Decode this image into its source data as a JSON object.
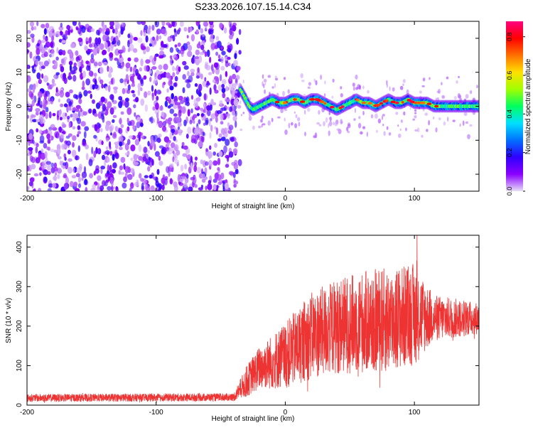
{
  "title": "S233.2026.107.15.14.C34",
  "chart_data": [
    {
      "type": "heatmap",
      "name": "spectrogram",
      "xlabel": "Height of straight line (km)",
      "ylabel": "Frequency (Hz)",
      "xlim": [
        -200,
        150
      ],
      "ylim": [
        -25,
        25
      ],
      "xticks": [
        -200,
        -100,
        0,
        100
      ],
      "yticks": [
        -20,
        -10,
        0,
        10,
        20
      ],
      "noise_region_x": [
        -200,
        -35
      ],
      "signal_trace": [
        {
          "x": -35,
          "y": 5
        },
        {
          "x": -32,
          "y": 3
        },
        {
          "x": -28,
          "y": 0
        },
        {
          "x": -25,
          "y": -1
        },
        {
          "x": -20,
          "y": 0
        },
        {
          "x": -15,
          "y": 1
        },
        {
          "x": -10,
          "y": 2
        },
        {
          "x": -5,
          "y": 1
        },
        {
          "x": 0,
          "y": 1
        },
        {
          "x": 5,
          "y": 2
        },
        {
          "x": 10,
          "y": 2
        },
        {
          "x": 15,
          "y": 1
        },
        {
          "x": 20,
          "y": 2
        },
        {
          "x": 25,
          "y": 2
        },
        {
          "x": 30,
          "y": 1
        },
        {
          "x": 35,
          "y": 0
        },
        {
          "x": 40,
          "y": -1
        },
        {
          "x": 45,
          "y": 0
        },
        {
          "x": 50,
          "y": 1
        },
        {
          "x": 55,
          "y": 2
        },
        {
          "x": 60,
          "y": 1
        },
        {
          "x": 65,
          "y": 1
        },
        {
          "x": 70,
          "y": 0
        },
        {
          "x": 75,
          "y": 1
        },
        {
          "x": 80,
          "y": 2
        },
        {
          "x": 85,
          "y": 1
        },
        {
          "x": 90,
          "y": 1
        },
        {
          "x": 95,
          "y": 2
        },
        {
          "x": 100,
          "y": 1
        },
        {
          "x": 105,
          "y": 1
        },
        {
          "x": 110,
          "y": 1
        },
        {
          "x": 115,
          "y": 0
        },
        {
          "x": 120,
          "y": 0
        },
        {
          "x": 130,
          "y": 0
        },
        {
          "x": 140,
          "y": 0
        },
        {
          "x": 150,
          "y": 0
        }
      ],
      "colorbar": {
        "label": "Normalized spectral amplitude",
        "ticks": [
          "0.0",
          "0.2",
          "0.4",
          "0.6",
          "0.8"
        ],
        "range": [
          0,
          0.88
        ],
        "colors": [
          "#e8e0f8",
          "#8a00ff",
          "#3000ff",
          "#0070ff",
          "#00e0ff",
          "#00ff60",
          "#a0ff00",
          "#ffe000",
          "#ff7000",
          "#ff0000",
          "#ff0080"
        ]
      }
    },
    {
      "type": "line",
      "name": "snr",
      "xlabel": "Height of straight line (km)",
      "ylabel": "SNR (10 * v/v)",
      "xlim": [
        -200,
        150
      ],
      "ylim": [
        0,
        430
      ],
      "xticks": [
        -200,
        -100,
        0,
        100
      ],
      "yticks": [
        0,
        100,
        200,
        300,
        400
      ],
      "color": "#ee3333",
      "envelope": [
        {
          "x": -200,
          "mean": 18,
          "amp": 10
        },
        {
          "x": -40,
          "mean": 20,
          "amp": 10
        },
        {
          "x": -30,
          "mean": 60,
          "amp": 40
        },
        {
          "x": -20,
          "mean": 95,
          "amp": 55
        },
        {
          "x": 0,
          "mean": 125,
          "amp": 85
        },
        {
          "x": 20,
          "mean": 175,
          "amp": 110
        },
        {
          "x": 40,
          "mean": 200,
          "amp": 120
        },
        {
          "x": 60,
          "mean": 210,
          "amp": 130
        },
        {
          "x": 80,
          "mean": 215,
          "amp": 135
        },
        {
          "x": 100,
          "mean": 230,
          "amp": 130
        },
        {
          "x": 115,
          "mean": 220,
          "amp": 60
        },
        {
          "x": 150,
          "mean": 220,
          "amp": 40
        }
      ],
      "peak": {
        "x": 102,
        "y": 430
      }
    }
  ]
}
